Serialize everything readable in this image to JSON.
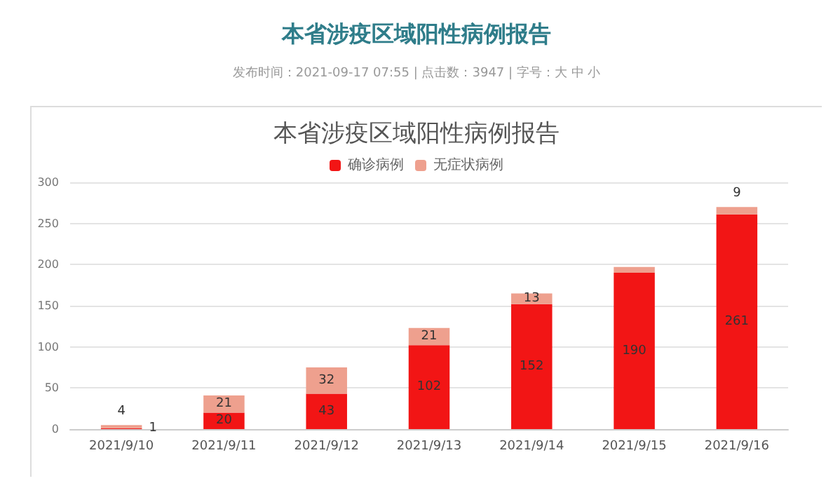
{
  "chart_data": {
    "type": "bar",
    "title": "本省涉疫区域阳性病例报告",
    "annotations": [
      "本省涉疫区域阳性病例报告",
      "发布时间：2021-09-17 07:55 | 点击数：3947 | 字号：大 中 小"
    ],
    "categories": [
      "2021/9/10",
      "2021/9/11",
      "2021/9/12",
      "2021/9/13",
      "2021/9/14",
      "2021/9/15",
      "2021/9/16"
    ],
    "series": [
      {
        "name": "确诊病例",
        "color": "#f21515",
        "values": [
          1,
          20,
          43,
          102,
          152,
          190,
          261
        ],
        "value_labels": [
          "1",
          "20",
          "43",
          "102",
          "152",
          "190",
          "261"
        ]
      },
      {
        "name": "无症状病例",
        "color": "#eea08e",
        "values": [
          4,
          21,
          32,
          21,
          13,
          7,
          9
        ],
        "value_labels": [
          "4",
          "21",
          "32",
          "21",
          "13",
          null,
          "9"
        ]
      }
    ],
    "stacked": true,
    "ylim": [
      0,
      300
    ],
    "yticks": [
      0,
      50,
      100,
      150,
      200,
      250,
      300
    ],
    "grid": "y",
    "legend": "top"
  }
}
